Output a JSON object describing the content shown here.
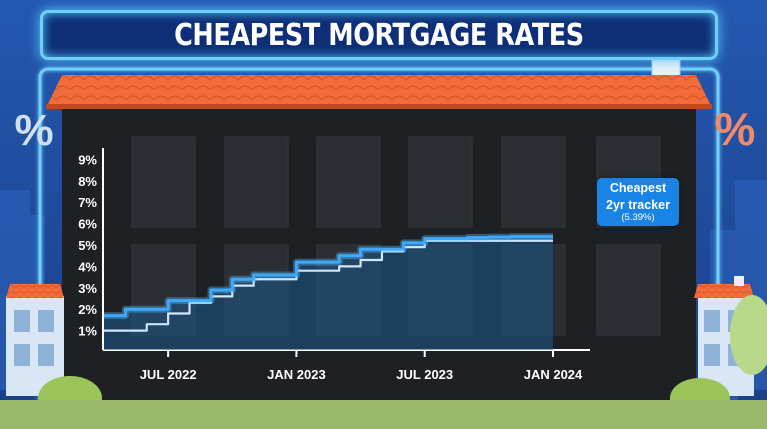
{
  "title": "CHEAPEST MORTGAGE RATES",
  "callout": {
    "line1": "Cheapest",
    "line2": "2yr tracker",
    "value": "(5.39%)"
  },
  "decor": {
    "percent_left": "%",
    "percent_right": "%"
  },
  "colors": {
    "bright_line": "#3fa8ff",
    "faint_line": "#cfe6ff",
    "area_fill": "#1b5a8c",
    "roof": "#f26b3a",
    "building": "#1e2024",
    "glow": "#58c8ff"
  },
  "chart_data": {
    "type": "line",
    "title": "CHEAPEST MORTGAGE RATES",
    "xlabel": "",
    "ylabel": "",
    "xlim": [
      "2022-04",
      "2024-01"
    ],
    "ylim": [
      0,
      9
    ],
    "y_ticks": [
      "1%",
      "2%",
      "3%",
      "4%",
      "5%",
      "6%",
      "7%",
      "8%",
      "9%"
    ],
    "x_ticks": [
      "JUL 2022",
      "JAN 2023",
      "JUL 2023",
      "JAN 2024"
    ],
    "x_tick_months": [
      3,
      9,
      15,
      21
    ],
    "series": [
      {
        "style": "bright",
        "months": [
          0,
          1,
          2,
          3,
          4,
          5,
          6,
          7,
          8,
          9,
          10,
          11,
          12,
          13,
          14,
          15,
          16,
          17,
          18,
          19,
          20,
          21
        ],
        "values": [
          1.7,
          2.0,
          2.0,
          2.4,
          2.4,
          2.9,
          3.4,
          3.6,
          3.6,
          4.2,
          4.2,
          4.5,
          4.8,
          4.8,
          5.1,
          5.3,
          5.3,
          5.35,
          5.37,
          5.39,
          5.39,
          5.39
        ]
      },
      {
        "style": "faint",
        "months": [
          0,
          1,
          2,
          3,
          4,
          5,
          6,
          7,
          8,
          9,
          10,
          11,
          12,
          13,
          14,
          15,
          16,
          17,
          18,
          19,
          20,
          21
        ],
        "values": [
          1.0,
          1.0,
          1.3,
          1.8,
          2.3,
          2.6,
          3.1,
          3.4,
          3.4,
          3.8,
          3.8,
          4.0,
          4.3,
          4.7,
          4.9,
          5.2,
          5.2,
          5.2,
          5.2,
          5.2,
          5.2,
          5.2
        ]
      }
    ]
  }
}
